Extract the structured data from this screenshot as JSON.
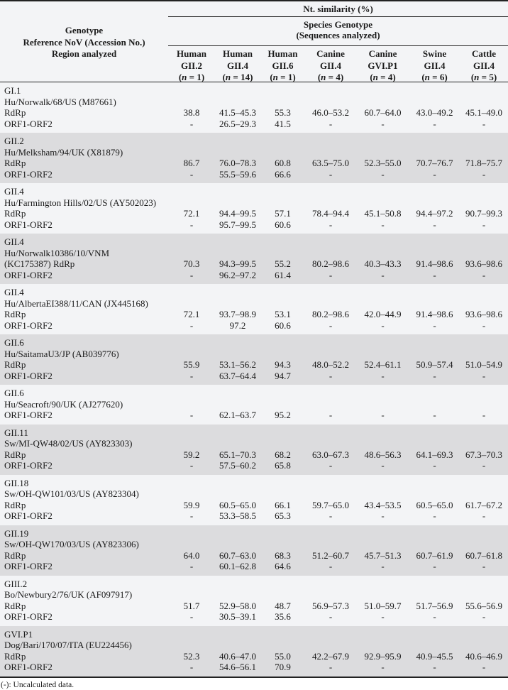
{
  "header": {
    "left": [
      "Genotype",
      "Reference NoV (Accession No.)",
      "Region analyzed"
    ],
    "nt_similarity": "Nt. similarity (%)",
    "species_genotype": "Species Genotype",
    "sequences_analyzed": "(Sequences analyzed)",
    "columns": [
      {
        "species": "Human",
        "genotype": "GII.2",
        "n": "1"
      },
      {
        "species": "Human",
        "genotype": "GII.4",
        "n": "14"
      },
      {
        "species": "Human",
        "genotype": "GII.6",
        "n": "1"
      },
      {
        "species": "Canine",
        "genotype": "GII.4",
        "n": "4"
      },
      {
        "species": "Canine",
        "genotype": "GVI.P1",
        "n": "4"
      },
      {
        "species": "Swine",
        "genotype": "GII.4",
        "n": "6"
      },
      {
        "species": "Cattle",
        "genotype": "GII.4",
        "n": "5"
      }
    ]
  },
  "blocks": [
    {
      "lines": [
        {
          "label": "GI.1"
        },
        {
          "label": "Hu/Norwalk/68/US (M87661)"
        },
        {
          "label": "RdRp",
          "values": [
            "38.8",
            "41.5–45.3",
            "55.3",
            "46.0–53.2",
            "60.7–64.0",
            "43.0–49.2",
            "45.1–49.0"
          ]
        },
        {
          "label": "ORF1-ORF2",
          "values": [
            "-",
            "26.5–29.3",
            "41.5",
            "-",
            "-",
            "-",
            "-"
          ]
        }
      ]
    },
    {
      "lines": [
        {
          "label": "GII.2"
        },
        {
          "label": "Hu/Melksham/94/UK (X81879)"
        },
        {
          "label": "RdRp",
          "values": [
            "86.7",
            "76.0–78.3",
            "60.8",
            "63.5–75.0",
            "52.3–55.0",
            "70.7–76.7",
            "71.8–75.7"
          ]
        },
        {
          "label": "ORF1-ORF2",
          "values": [
            "-",
            "55.5–59.6",
            "66.6",
            "-",
            "-",
            "-",
            "-"
          ]
        }
      ]
    },
    {
      "lines": [
        {
          "label": "GII.4"
        },
        {
          "label": "Hu/Farmington Hills/02/US (AY502023)"
        },
        {
          "label": "RdRp",
          "values": [
            "72.1",
            "94.4–99.5",
            "57.1",
            "78.4–94.4",
            "45.1–50.8",
            "94.4–97.2",
            "90.7–99.3"
          ]
        },
        {
          "label": "ORF1-ORF2",
          "values": [
            "-",
            "95.7–99.5",
            "60.6",
            "-",
            "-",
            "-",
            "-"
          ]
        }
      ]
    },
    {
      "lines": [
        {
          "label": "GII.4"
        },
        {
          "label": "Hu/Norwalk10386/10/VNM"
        },
        {
          "label": "(KC175387) RdRp",
          "values": [
            "70.3",
            "94.3–99.5",
            "55.2",
            "80.2–98.6",
            "40.3–43.3",
            "91.4–98.6",
            "93.6–98.6"
          ]
        },
        {
          "label": "ORF1-ORF2",
          "values": [
            "-",
            "96.2–97.2",
            "61.4",
            "-",
            "-",
            "-",
            "-"
          ]
        }
      ]
    },
    {
      "lines": [
        {
          "label": "GII.4"
        },
        {
          "label": "Hu/AlbertaEI388/11/CAN (JX445168)"
        },
        {
          "label": "RdRp",
          "values": [
            "72.1",
            "93.7–98.9",
            "53.1",
            "80.2–98.6",
            "42.0–44.9",
            "91.4–98.6",
            "93.6–98.6"
          ]
        },
        {
          "label": "ORF1-ORF2",
          "values": [
            "-",
            "97.2",
            "60.6",
            "-",
            "-",
            "-",
            "-"
          ]
        }
      ]
    },
    {
      "lines": [
        {
          "label": "GII.6"
        },
        {
          "label": "Hu/SaitamaU3/JP (AB039776)"
        },
        {
          "label": "RdRp",
          "values": [
            "55.9",
            "53.1–56.2",
            "94.3",
            "48.0–52.2",
            "52.4–61.1",
            "50.9–57.4",
            "51.0–54.9"
          ]
        },
        {
          "label": "ORF1-ORF2",
          "values": [
            "-",
            "63.7–64.4",
            "94.7",
            "-",
            "-",
            "-",
            "-"
          ]
        }
      ]
    },
    {
      "lines": [
        {
          "label": "GII.6"
        },
        {
          "label": "Hu/Seacroft/90/UK (AJ277620)"
        },
        {
          "label": "ORF1-ORF2",
          "values": [
            "-",
            "62.1–63.7",
            "95.2",
            "-",
            "-",
            "-",
            "-"
          ]
        }
      ]
    },
    {
      "lines": [
        {
          "label": "GII.11"
        },
        {
          "label": "Sw/MI-QW48/02/US (AY823303)"
        },
        {
          "label": "RdRp",
          "values": [
            "59.2",
            "65.1–70.3",
            "68.2",
            "63.0–67.3",
            "48.6–56.3",
            "64.1–69.3",
            "67.3–70.3"
          ]
        },
        {
          "label": "ORF1-ORF2",
          "values": [
            "-",
            "57.5–60.2",
            "65.8",
            "-",
            "-",
            "-",
            "-"
          ]
        }
      ]
    },
    {
      "lines": [
        {
          "label": "GII.18"
        },
        {
          "label": "Sw/OH-QW101/03/US (AY823304)"
        },
        {
          "label": "RdRp",
          "values": [
            "59.9",
            "60.5–65.0",
            "66.1",
            "59.7–65.0",
            "43.4–53.5",
            "60.5–65.0",
            "61.7–67.2"
          ]
        },
        {
          "label": "ORF1-ORF2",
          "values": [
            "-",
            "53.3–58.5",
            "65.3",
            "-",
            "-",
            "-",
            "-"
          ]
        }
      ]
    },
    {
      "lines": [
        {
          "label": "GII.19"
        },
        {
          "label": "Sw/OH-QW170/03/US (AY823306)"
        },
        {
          "label": "RdRp",
          "values": [
            "64.0",
            "60.7–63.0",
            "68.3",
            "51.2–60.7",
            "45.7–51.3",
            "60.7–61.9",
            "60.7–61.8"
          ]
        },
        {
          "label": "ORF1-ORF2",
          "values": [
            "-",
            "60.1–62.8",
            "64.6",
            "-",
            "-",
            "-",
            "-"
          ]
        }
      ]
    },
    {
      "lines": [
        {
          "label": "GIII.2"
        },
        {
          "label": "Bo/Newbury2/76/UK (AF097917)"
        },
        {
          "label": "RdRp",
          "values": [
            "51.7",
            "52.9–58.0",
            "48.7",
            "56.9–57.3",
            "51.0–59.7",
            "51.7–56.9",
            "55.6–56.9"
          ]
        },
        {
          "label": "ORF1-ORF2",
          "values": [
            "-",
            "30.5–39.1",
            "35.6",
            "-",
            "-",
            "-",
            "-"
          ]
        }
      ]
    },
    {
      "lines": [
        {
          "label": "GVI.P1"
        },
        {
          "label": "Dog/Bari/170/07/ITA (EU224456)"
        },
        {
          "label": "RdRp",
          "values": [
            "52.3",
            "40.6–47.0",
            "55.0",
            "42.2–67.9",
            "92.9–95.9",
            "40.9–45.5",
            "40.6–46.9"
          ]
        },
        {
          "label": "ORF1-ORF2",
          "values": [
            "-",
            "54.6–56.1",
            "70.9",
            "-",
            "-",
            "-",
            "-"
          ]
        }
      ]
    }
  ],
  "footnote": "(-): Uncalculated data.",
  "colors": {
    "row_light": "#f3f4f6",
    "row_dark": "#dcdcde",
    "rule": "#222222"
  }
}
